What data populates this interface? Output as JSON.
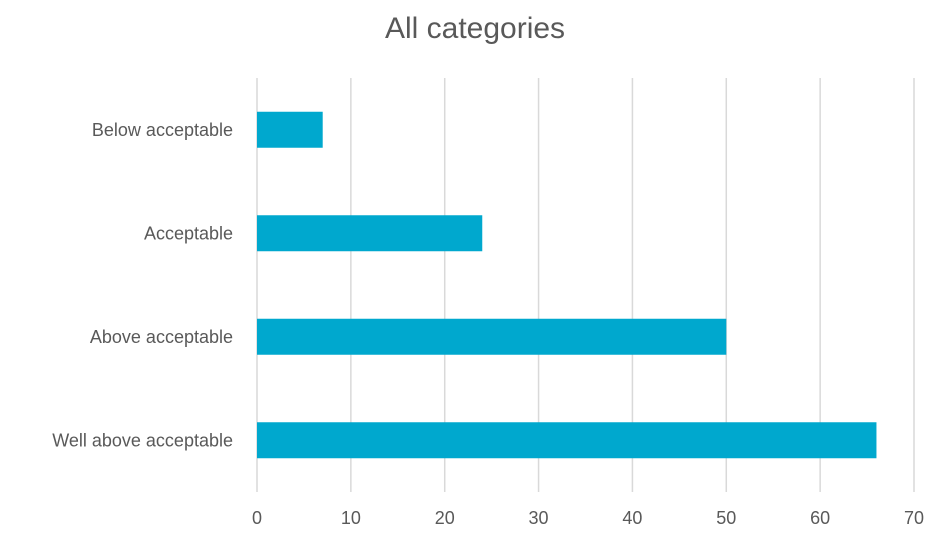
{
  "chart_data": {
    "type": "bar",
    "orientation": "horizontal",
    "title": "All categories",
    "categories": [
      "Below acceptable",
      "Acceptable",
      "Above acceptable",
      "Well above acceptable"
    ],
    "values": [
      7,
      24,
      50,
      66
    ],
    "xlim": [
      0,
      70
    ],
    "xticks": [
      "0",
      "10",
      "20",
      "30",
      "40",
      "50",
      "60",
      "70"
    ],
    "grid": true,
    "legend": "none",
    "bar_color": "#00a8ce",
    "xlabel": "",
    "ylabel": ""
  }
}
